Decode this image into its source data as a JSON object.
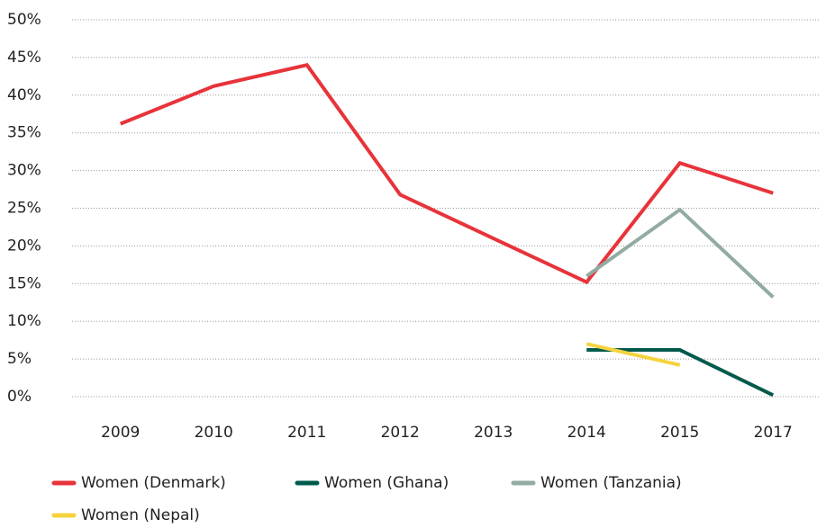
{
  "chart_data": {
    "type": "line",
    "categories": [
      "2009",
      "2010",
      "2011",
      "2012",
      "2013",
      "2014",
      "2015",
      "2017"
    ],
    "series": [
      {
        "name": "Women (Denmark)",
        "color": "#e8333a",
        "values": [
          36.2,
          41.2,
          44,
          26.8,
          21,
          15.2,
          31,
          27
        ]
      },
      {
        "name": "Women (Ghana)",
        "color": "#005a4c",
        "values": [
          null,
          null,
          null,
          null,
          null,
          6.2,
          6.2,
          0.2
        ]
      },
      {
        "name": "Women (Tanzania)",
        "color": "#92aba3",
        "values": [
          null,
          null,
          null,
          null,
          null,
          16,
          24.8,
          13.2
        ]
      },
      {
        "name": "Women (Nepal)",
        "color": "#f5d33f",
        "values": [
          null,
          null,
          null,
          null,
          null,
          7,
          4.2,
          null
        ]
      }
    ],
    "ylim": [
      0,
      50
    ],
    "yticks": [
      {
        "value": 0,
        "label": "0%"
      },
      {
        "value": 5,
        "label": "5%"
      },
      {
        "value": 10,
        "label": "10%"
      },
      {
        "value": 15,
        "label": "15%"
      },
      {
        "value": 20,
        "label": "20%"
      },
      {
        "value": 25,
        "label": "25%"
      },
      {
        "value": 30,
        "label": "30%"
      },
      {
        "value": 35,
        "label": "35%"
      },
      {
        "value": 40,
        "label": "40%"
      },
      {
        "value": 45,
        "label": "45%"
      },
      {
        "value": 50,
        "label": "50%"
      }
    ],
    "grid": true,
    "legend": "bottom"
  }
}
